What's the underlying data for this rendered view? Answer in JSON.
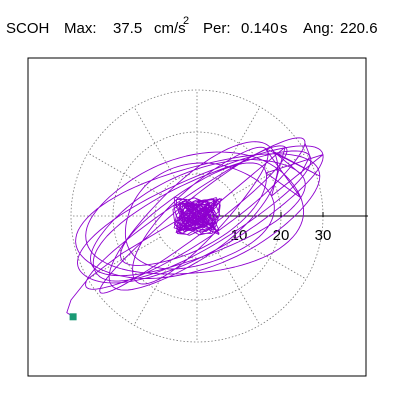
{
  "header": {
    "station": "SCOH",
    "max_label": "Max:",
    "max_value": "37.5",
    "max_unit": "cm/s",
    "max_unit_exponent": "2",
    "per_label": "Per:",
    "per_value": "0.140",
    "per_unit": "s",
    "ang_label": "Ang:",
    "ang_value": "220.6"
  },
  "chart_data": {
    "type": "scatter",
    "title": "",
    "xlabel": "",
    "ylabel": "",
    "x_tick_labels": [
      "10",
      "20",
      "30"
    ],
    "x_ticks": [
      10,
      20,
      30
    ],
    "polar_grid_radii": [
      10,
      20,
      30
    ],
    "polar_grid_spokes_deg": [
      0,
      30,
      60,
      90,
      120,
      150,
      180,
      210,
      240,
      270,
      300,
      330
    ],
    "grid": true,
    "series": [
      {
        "color": "#8e00cf",
        "ellipses": [
          {
            "a": 31,
            "b": 5.5,
            "angle": 34
          },
          {
            "a": 29,
            "b": 8,
            "angle": 28
          },
          {
            "a": 27,
            "b": 10,
            "angle": 22
          },
          {
            "a": 25,
            "b": 9,
            "angle": 40
          },
          {
            "a": 30,
            "b": 12,
            "angle": 18
          },
          {
            "a": 22,
            "b": 6,
            "angle": 45
          },
          {
            "a": 26,
            "b": 14,
            "angle": 10
          },
          {
            "a": 20,
            "b": 7,
            "angle": 32
          },
          {
            "a": 32,
            "b": 9,
            "angle": 26
          },
          {
            "a": 18,
            "b": 12,
            "angle": 15
          },
          {
            "a": 28,
            "b": 4,
            "angle": 38
          }
        ]
      }
    ],
    "end_marker_color": "#1a9a74",
    "end_point": [
      -29.5,
      -24.0
    ]
  }
}
